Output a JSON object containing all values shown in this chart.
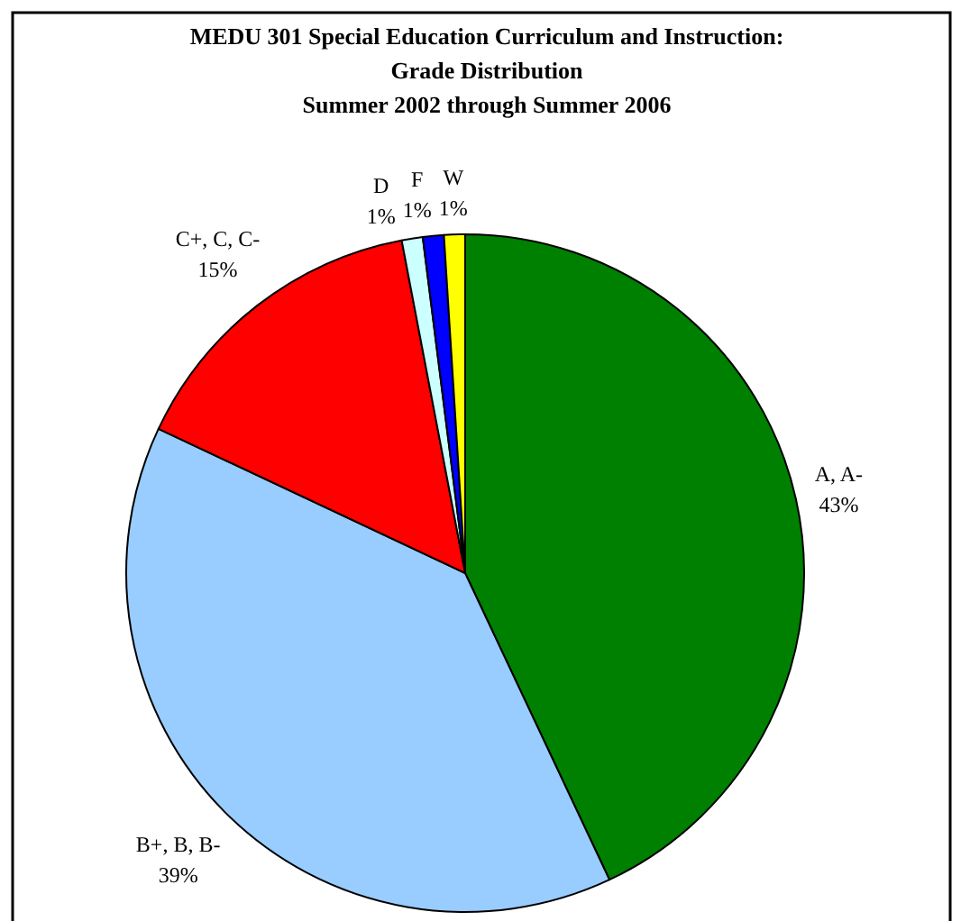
{
  "chart_data": {
    "type": "pie",
    "title": "MEDU 301 Special Education Curriculum and Instruction:\nGrade Distribution\nSummer 2002 through Summer 2006",
    "categories": [
      "A, A-",
      "B+, B, B-",
      "C+, C, C-",
      "D",
      "F",
      "W"
    ],
    "values": [
      43,
      39,
      15,
      1,
      1,
      1
    ],
    "colors": [
      "#008000",
      "#99ccff",
      "#ff0000",
      "#ccffff",
      "#0000ff",
      "#ffff00"
    ],
    "value_labels": [
      "43%",
      "39%",
      "15%",
      "1%",
      "1%",
      "1%"
    ]
  }
}
